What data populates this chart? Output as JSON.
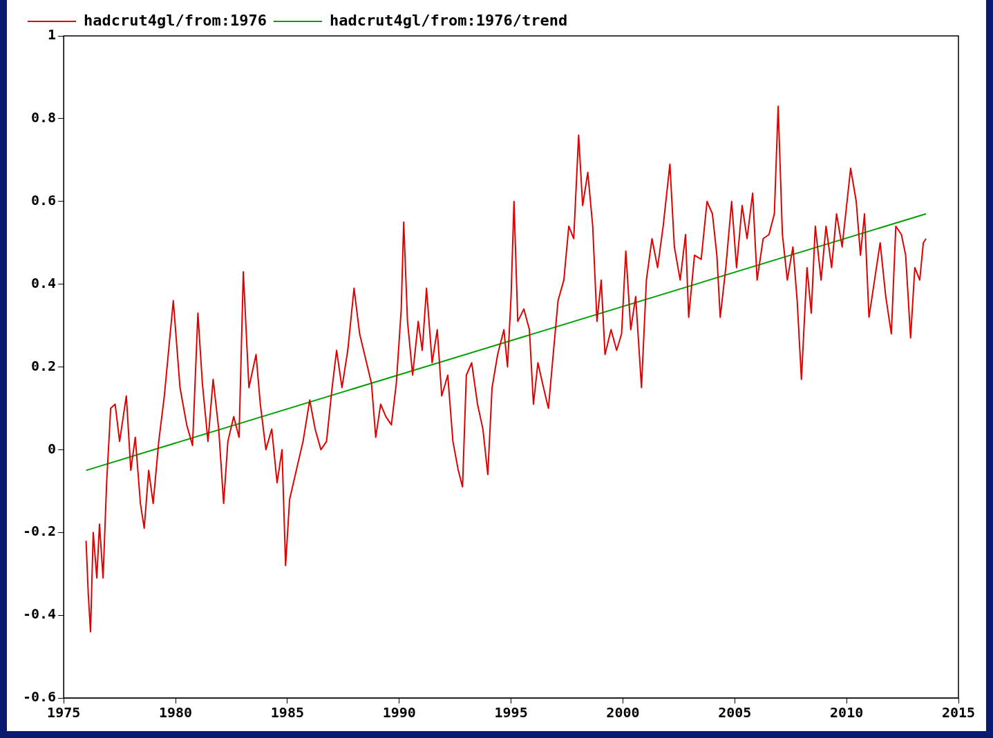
{
  "chart_data": {
    "type": "line",
    "xlim": [
      1975,
      2015
    ],
    "xticks": [
      1975,
      1980,
      1985,
      1990,
      1995,
      2000,
      2005,
      2010,
      2015
    ],
    "ylim": [
      -0.6,
      1
    ],
    "yticks": [
      -0.6,
      -0.4,
      -0.2,
      0,
      0.2,
      0.4,
      0.6,
      0.8,
      1
    ],
    "grid": false,
    "legend": "top left",
    "marker": "none",
    "line_style": "solid",
    "series": [
      {
        "name": "hadcrut4gl/from:1976",
        "color": "#e00000",
        "x": [
          1976.0,
          1976.1,
          1976.2,
          1976.32,
          1976.48,
          1976.6,
          1976.76,
          1976.92,
          1977.1,
          1977.3,
          1977.5,
          1977.8,
          1978.0,
          1978.2,
          1978.43,
          1978.6,
          1978.8,
          1979.0,
          1979.25,
          1979.5,
          1979.9,
          1980.2,
          1980.5,
          1980.76,
          1981.0,
          1981.2,
          1981.45,
          1981.68,
          1981.93,
          1982.15,
          1982.34,
          1982.6,
          1982.84,
          1983.03,
          1983.28,
          1983.6,
          1983.79,
          1984.04,
          1984.3,
          1984.54,
          1984.76,
          1984.92,
          1985.1,
          1985.4,
          1985.7,
          1986.0,
          1986.24,
          1986.5,
          1986.75,
          1987.0,
          1987.2,
          1987.44,
          1987.7,
          1987.98,
          1988.23,
          1988.54,
          1988.76,
          1988.95,
          1989.17,
          1989.4,
          1989.65,
          1989.87,
          1990.09,
          1990.2,
          1990.37,
          1990.6,
          1990.85,
          1991.03,
          1991.22,
          1991.47,
          1991.7,
          1991.9,
          1992.17,
          1992.4,
          1992.64,
          1992.83,
          1993.0,
          1993.24,
          1993.5,
          1993.74,
          1993.96,
          1994.15,
          1994.4,
          1994.68,
          1994.84,
          1995.0,
          1995.13,
          1995.3,
          1995.57,
          1995.82,
          1996.0,
          1996.2,
          1996.45,
          1996.67,
          1996.9,
          1997.1,
          1997.36,
          1997.58,
          1997.8,
          1998.02,
          1998.2,
          1998.43,
          1998.65,
          1998.84,
          1999.03,
          1999.2,
          1999.47,
          1999.72,
          1999.94,
          2000.13,
          2000.35,
          2000.57,
          2000.83,
          2001.05,
          2001.3,
          2001.55,
          2001.8,
          2002.1,
          2002.3,
          2002.56,
          2002.8,
          2002.94,
          2003.2,
          2003.5,
          2003.76,
          2004.0,
          2004.2,
          2004.35,
          2004.6,
          2004.86,
          2005.08,
          2005.33,
          2005.55,
          2005.8,
          2006.0,
          2006.27,
          2006.53,
          2006.77,
          2006.94,
          2007.13,
          2007.35,
          2007.6,
          2007.79,
          2007.98,
          2008.23,
          2008.42,
          2008.6,
          2008.86,
          2009.08,
          2009.33,
          2009.55,
          2009.8,
          2010.0,
          2010.18,
          2010.43,
          2010.62,
          2010.8,
          2011.0,
          2011.25,
          2011.5,
          2011.75,
          2012.0,
          2012.2,
          2012.45,
          2012.64,
          2012.86,
          2013.05,
          2013.27,
          2013.43,
          2013.55
        ],
        "values": [
          -0.22,
          -0.35,
          -0.44,
          -0.2,
          -0.31,
          -0.18,
          -0.31,
          -0.08,
          0.1,
          0.11,
          0.02,
          0.13,
          -0.05,
          0.03,
          -0.13,
          -0.19,
          -0.05,
          -0.13,
          0.02,
          0.13,
          0.36,
          0.15,
          0.06,
          0.01,
          0.33,
          0.16,
          0.02,
          0.17,
          0.05,
          -0.13,
          0.02,
          0.08,
          0.03,
          0.43,
          0.15,
          0.23,
          0.11,
          0.0,
          0.05,
          -0.08,
          0.0,
          -0.28,
          -0.12,
          -0.05,
          0.02,
          0.12,
          0.05,
          0.0,
          0.02,
          0.15,
          0.24,
          0.15,
          0.24,
          0.39,
          0.28,
          0.21,
          0.16,
          0.03,
          0.11,
          0.08,
          0.06,
          0.16,
          0.34,
          0.55,
          0.31,
          0.18,
          0.31,
          0.24,
          0.39,
          0.21,
          0.29,
          0.13,
          0.18,
          0.02,
          -0.05,
          -0.09,
          0.18,
          0.21,
          0.11,
          0.05,
          -0.06,
          0.15,
          0.23,
          0.29,
          0.2,
          0.37,
          0.6,
          0.31,
          0.34,
          0.29,
          0.11,
          0.21,
          0.15,
          0.1,
          0.24,
          0.36,
          0.41,
          0.54,
          0.51,
          0.76,
          0.59,
          0.67,
          0.54,
          0.31,
          0.41,
          0.23,
          0.29,
          0.24,
          0.28,
          0.48,
          0.29,
          0.37,
          0.15,
          0.41,
          0.51,
          0.44,
          0.54,
          0.69,
          0.49,
          0.41,
          0.52,
          0.32,
          0.47,
          0.46,
          0.6,
          0.57,
          0.47,
          0.32,
          0.44,
          0.6,
          0.44,
          0.59,
          0.51,
          0.62,
          0.41,
          0.51,
          0.52,
          0.57,
          0.83,
          0.52,
          0.41,
          0.49,
          0.36,
          0.17,
          0.44,
          0.33,
          0.54,
          0.41,
          0.54,
          0.44,
          0.57,
          0.49,
          0.59,
          0.68,
          0.6,
          0.47,
          0.57,
          0.32,
          0.41,
          0.5,
          0.37,
          0.28,
          0.54,
          0.52,
          0.47,
          0.27,
          0.44,
          0.41,
          0.5,
          0.51
        ]
      },
      {
        "name": "hadcrut4gl/from:1976/trend",
        "color": "#00a000",
        "x": [
          1976.0,
          2013.55
        ],
        "values": [
          -0.05,
          0.57
        ]
      }
    ]
  }
}
